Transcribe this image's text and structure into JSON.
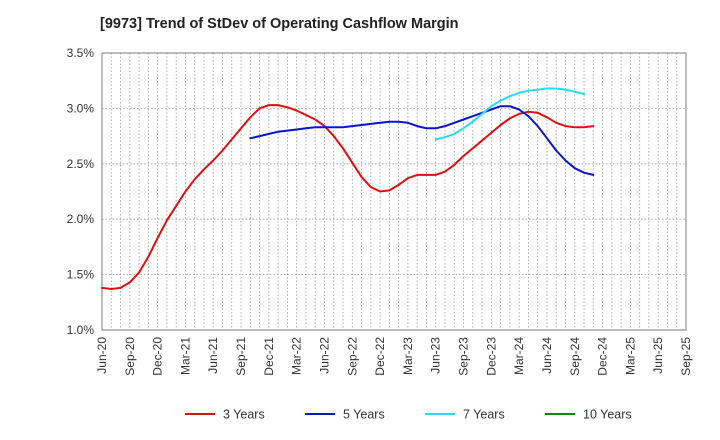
{
  "chart_data": {
    "type": "line",
    "title": "[9973]  Trend of StDev of Operating Cashflow Margin",
    "xlabel": "",
    "ylabel": "",
    "x_categories": [
      "Jun-20",
      "Sep-20",
      "Dec-20",
      "Mar-21",
      "Jun-21",
      "Sep-21",
      "Dec-21",
      "Mar-22",
      "Jun-22",
      "Sep-22",
      "Dec-22",
      "Mar-23",
      "Jun-23",
      "Sep-23",
      "Dec-23",
      "Mar-24",
      "Jun-24",
      "Sep-24",
      "Dec-24",
      "Mar-25",
      "Jun-25",
      "Sep-25"
    ],
    "y_ticks": [
      "1.0%",
      "1.5%",
      "2.0%",
      "2.5%",
      "3.0%",
      "3.5%"
    ],
    "ylim": [
      1.0,
      3.5
    ],
    "grid": "dotted, vertical minor monthly and horizontal",
    "legend_position": "bottom",
    "series": [
      {
        "name": "3 Years",
        "color": "#dd1111",
        "points": [
          [
            "Jun-20",
            1.38
          ],
          [
            "Jul-20",
            1.37
          ],
          [
            "Aug-20",
            1.38
          ],
          [
            "Sep-20",
            1.43
          ],
          [
            "Oct-20",
            1.52
          ],
          [
            "Nov-20",
            1.66
          ],
          [
            "Dec-20",
            1.83
          ],
          [
            "Jan-21",
            1.99
          ],
          [
            "Feb-21",
            2.12
          ],
          [
            "Mar-21",
            2.25
          ],
          [
            "Apr-21",
            2.36
          ],
          [
            "May-21",
            2.45
          ],
          [
            "Jun-21",
            2.53
          ],
          [
            "Jul-21",
            2.62
          ],
          [
            "Aug-21",
            2.72
          ],
          [
            "Sep-21",
            2.82
          ],
          [
            "Oct-21",
            2.92
          ],
          [
            "Nov-21",
            3.0
          ],
          [
            "Dec-21",
            3.03
          ],
          [
            "Jan-22",
            3.03
          ],
          [
            "Feb-22",
            3.01
          ],
          [
            "Mar-22",
            2.98
          ],
          [
            "Apr-22",
            2.94
          ],
          [
            "May-22",
            2.9
          ],
          [
            "Jun-22",
            2.84
          ],
          [
            "Jul-22",
            2.75
          ],
          [
            "Aug-22",
            2.64
          ],
          [
            "Sep-22",
            2.51
          ],
          [
            "Oct-22",
            2.38
          ],
          [
            "Nov-22",
            2.29
          ],
          [
            "Dec-22",
            2.25
          ],
          [
            "Jan-23",
            2.26
          ],
          [
            "Feb-23",
            2.31
          ],
          [
            "Mar-23",
            2.37
          ],
          [
            "Apr-23",
            2.4
          ],
          [
            "May-23",
            2.4
          ],
          [
            "Jun-23",
            2.4
          ],
          [
            "Jul-23",
            2.43
          ],
          [
            "Aug-23",
            2.49
          ],
          [
            "Sep-23",
            2.57
          ],
          [
            "Oct-23",
            2.64
          ],
          [
            "Nov-23",
            2.71
          ],
          [
            "Dec-23",
            2.78
          ],
          [
            "Jan-24",
            2.85
          ],
          [
            "Feb-24",
            2.91
          ],
          [
            "Mar-24",
            2.95
          ],
          [
            "Apr-24",
            2.97
          ],
          [
            "May-24",
            2.96
          ],
          [
            "Jun-24",
            2.92
          ],
          [
            "Jul-24",
            2.87
          ],
          [
            "Aug-24",
            2.84
          ],
          [
            "Sep-24",
            2.83
          ],
          [
            "Oct-24",
            2.83
          ],
          [
            "Nov-24",
            2.84
          ]
        ]
      },
      {
        "name": "5 Years",
        "color": "#0a14cc",
        "points": [
          [
            "Oct-21",
            2.73
          ],
          [
            "Nov-21",
            2.75
          ],
          [
            "Dec-21",
            2.77
          ],
          [
            "Jan-22",
            2.79
          ],
          [
            "Feb-22",
            2.8
          ],
          [
            "Mar-22",
            2.81
          ],
          [
            "Apr-22",
            2.82
          ],
          [
            "May-22",
            2.83
          ],
          [
            "Jun-22",
            2.83
          ],
          [
            "Jul-22",
            2.83
          ],
          [
            "Aug-22",
            2.83
          ],
          [
            "Sep-22",
            2.84
          ],
          [
            "Oct-22",
            2.85
          ],
          [
            "Nov-22",
            2.86
          ],
          [
            "Dec-22",
            2.87
          ],
          [
            "Jan-23",
            2.88
          ],
          [
            "Feb-23",
            2.88
          ],
          [
            "Mar-23",
            2.87
          ],
          [
            "Apr-23",
            2.84
          ],
          [
            "May-23",
            2.82
          ],
          [
            "Jun-23",
            2.82
          ],
          [
            "Jul-23",
            2.84
          ],
          [
            "Aug-23",
            2.87
          ],
          [
            "Sep-23",
            2.9
          ],
          [
            "Oct-23",
            2.93
          ],
          [
            "Nov-23",
            2.96
          ],
          [
            "Dec-23",
            2.99
          ],
          [
            "Jan-24",
            3.02
          ],
          [
            "Feb-24",
            3.02
          ],
          [
            "Mar-24",
            2.99
          ],
          [
            "Apr-24",
            2.93
          ],
          [
            "May-24",
            2.84
          ],
          [
            "Jun-24",
            2.73
          ],
          [
            "Jul-24",
            2.62
          ],
          [
            "Aug-24",
            2.53
          ],
          [
            "Sep-24",
            2.46
          ],
          [
            "Oct-24",
            2.42
          ],
          [
            "Nov-24",
            2.4
          ]
        ]
      },
      {
        "name": "7 Years",
        "color": "#22e0ee",
        "points": [
          [
            "Jun-23",
            2.72
          ],
          [
            "Jul-23",
            2.74
          ],
          [
            "Aug-23",
            2.77
          ],
          [
            "Sep-23",
            2.82
          ],
          [
            "Oct-23",
            2.88
          ],
          [
            "Nov-23",
            2.95
          ],
          [
            "Dec-23",
            3.02
          ],
          [
            "Jan-24",
            3.07
          ],
          [
            "Feb-24",
            3.11
          ],
          [
            "Mar-24",
            3.14
          ],
          [
            "Apr-24",
            3.16
          ],
          [
            "May-24",
            3.17
          ],
          [
            "Jun-24",
            3.18
          ],
          [
            "Jul-24",
            3.18
          ],
          [
            "Aug-24",
            3.17
          ],
          [
            "Sep-24",
            3.15
          ],
          [
            "Oct-24",
            3.13
          ]
        ]
      },
      {
        "name": "10 Years",
        "color": "#128a12",
        "points": []
      }
    ]
  }
}
